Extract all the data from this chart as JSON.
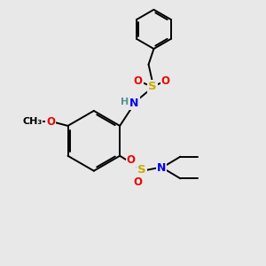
{
  "bg_color": "#e8e8e8",
  "atom_colors": {
    "C": "#000000",
    "H": "#5a9090",
    "N": "#0000ee",
    "O": "#ee0000",
    "S": "#ccaa00"
  },
  "bond_color": "#000000",
  "bond_width": 1.4,
  "fig_width": 3.0,
  "fig_height": 3.0,
  "dpi": 100,
  "xlim": [
    0.0,
    10.0
  ],
  "ylim": [
    0.5,
    10.5
  ]
}
